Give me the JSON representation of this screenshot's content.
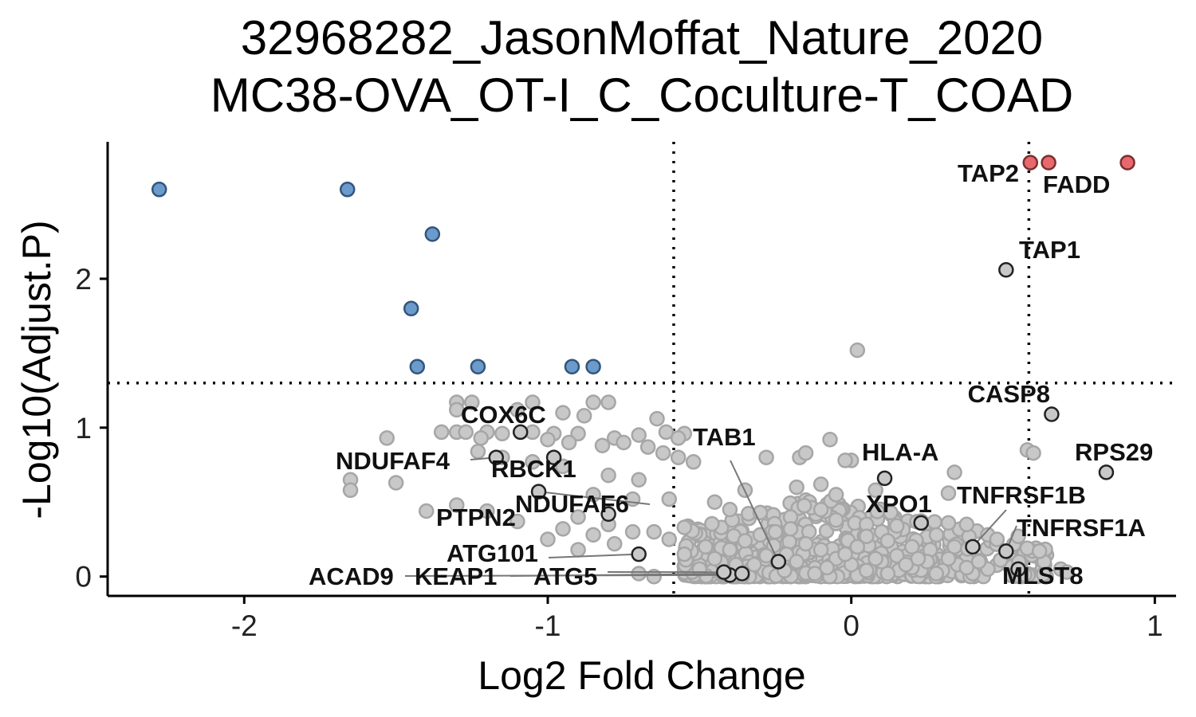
{
  "chart_data": {
    "type": "scatter",
    "title": [
      "32968282_JasonMoffat_Nature_2020",
      "MC38-OVA_OT-I_C_Coculture-T_COAD"
    ],
    "xlabel": "Log2 Fold Change",
    "ylabel": "-Log10(Adjust.P)",
    "xlim": [
      -2.45,
      1.07
    ],
    "ylim": [
      -0.13,
      2.92
    ],
    "x_ticks": [
      -2,
      -1,
      0,
      1
    ],
    "x_tick_labels": [
      "-2",
      "-1",
      "0",
      "1"
    ],
    "y_ticks": [
      0,
      1,
      2
    ],
    "y_tick_labels": [
      "0",
      "1",
      "2"
    ],
    "thresholds": {
      "x": [
        -0.585,
        0.585
      ],
      "y": 1.3
    },
    "grid": false,
    "legend": "none",
    "colors": {
      "up": "#e8686d",
      "down": "#6a9bcc",
      "ns": "#c8c8c8",
      "ns_stroke": "#a6a6a6",
      "labeled_stroke": "#222222"
    },
    "series": [
      {
        "category": "up",
        "points": [
          [
            0.59,
            2.78
          ],
          [
            0.65,
            2.78
          ],
          [
            0.91,
            2.78
          ]
        ]
      },
      {
        "category": "down",
        "points": [
          [
            -2.28,
            2.6
          ],
          [
            -1.66,
            2.6
          ],
          [
            -1.38,
            2.3
          ],
          [
            -1.45,
            1.8
          ],
          [
            -1.43,
            1.41
          ],
          [
            -1.23,
            1.41
          ],
          [
            -0.92,
            1.41
          ],
          [
            -0.85,
            1.41
          ]
        ]
      },
      {
        "category": "ns",
        "points": [
          [
            0.02,
            1.52
          ],
          [
            -1.3,
            1.17
          ],
          [
            -1.25,
            1.17
          ],
          [
            -1.05,
            1.17
          ],
          [
            -0.85,
            1.17
          ],
          [
            -0.8,
            1.17
          ],
          [
            -1.1,
            1.12
          ],
          [
            -0.95,
            1.1
          ],
          [
            -1.3,
            1.12
          ],
          [
            -0.88,
            1.08
          ],
          [
            -0.64,
            1.06
          ],
          [
            -1.35,
            0.97
          ],
          [
            -1.3,
            0.97
          ],
          [
            -1.27,
            0.97
          ],
          [
            -1.2,
            0.97
          ],
          [
            -1.15,
            0.96
          ],
          [
            -1.05,
            0.97
          ],
          [
            -0.98,
            0.96
          ],
          [
            -0.9,
            0.96
          ],
          [
            -0.78,
            0.93
          ],
          [
            -0.7,
            0.95
          ],
          [
            -0.61,
            0.97
          ],
          [
            -0.55,
            0.96
          ],
          [
            -0.57,
            0.93
          ],
          [
            -1.53,
            0.93
          ],
          [
            -1.22,
            0.93
          ],
          [
            -1.0,
            0.92
          ],
          [
            -0.93,
            0.9
          ],
          [
            -0.82,
            0.88
          ],
          [
            -0.75,
            0.9
          ],
          [
            -0.67,
            0.87
          ],
          [
            -0.62,
            0.83
          ],
          [
            -0.57,
            0.8
          ],
          [
            -0.52,
            0.77
          ],
          [
            -0.28,
            0.8
          ],
          [
            -0.17,
            0.8
          ],
          [
            -0.15,
            0.83
          ],
          [
            -0.07,
            0.92
          ],
          [
            0.0,
            0.78
          ],
          [
            -0.02,
            0.78
          ],
          [
            -1.23,
            0.84
          ],
          [
            -1.15,
            0.8
          ],
          [
            -1.05,
            0.77
          ],
          [
            -0.95,
            0.74
          ],
          [
            -0.8,
            0.68
          ],
          [
            -0.7,
            0.65
          ],
          [
            -1.65,
            0.65
          ],
          [
            -1.65,
            0.58
          ],
          [
            -1.5,
            0.63
          ],
          [
            -1.3,
            0.48
          ],
          [
            -1.4,
            0.44
          ],
          [
            -1.2,
            0.44
          ],
          [
            -1.1,
            0.37
          ],
          [
            -0.9,
            0.4
          ],
          [
            -0.8,
            0.35
          ],
          [
            -0.72,
            0.3
          ],
          [
            -0.65,
            0.3
          ],
          [
            -0.55,
            0.33
          ],
          [
            -0.45,
            0.5
          ],
          [
            -0.4,
            0.45
          ],
          [
            -0.3,
            0.43
          ],
          [
            -0.2,
            0.4
          ],
          [
            -0.1,
            0.45
          ],
          [
            -0.05,
            0.38
          ],
          [
            0.05,
            0.35
          ],
          [
            0.1,
            0.3
          ],
          [
            0.15,
            0.34
          ],
          [
            -0.18,
            0.6
          ],
          [
            -0.1,
            0.62
          ],
          [
            -0.05,
            0.55
          ],
          [
            0.08,
            0.58
          ],
          [
            0.34,
            0.7
          ],
          [
            0.32,
            0.56
          ],
          [
            0.32,
            0.36
          ],
          [
            0.38,
            0.35
          ],
          [
            0.45,
            0.28
          ],
          [
            0.48,
            0.25
          ],
          [
            0.55,
            0.27
          ],
          [
            0.58,
            0.85
          ],
          [
            0.6,
            0.83
          ],
          [
            0.58,
            0.19
          ],
          [
            0.62,
            0.17
          ],
          [
            0.69,
            0.05
          ],
          [
            0.71,
            0.03
          ],
          [
            0.34,
            0.2
          ],
          [
            0.26,
            0.18
          ],
          [
            0.2,
            0.2
          ],
          [
            0.12,
            0.24
          ],
          [
            0.05,
            0.27
          ],
          [
            -0.35,
            0.58
          ],
          [
            -0.6,
            0.52
          ],
          [
            -0.72,
            0.52
          ],
          [
            -0.85,
            0.55
          ],
          [
            -0.7,
            0.02
          ],
          [
            -0.65,
            0.0
          ],
          [
            -0.5,
            0.05
          ],
          [
            -0.45,
            0.12
          ],
          [
            -0.4,
            0.18
          ],
          [
            -0.35,
            0.24
          ],
          [
            -0.3,
            0.28
          ],
          [
            -0.25,
            0.3
          ],
          [
            -0.2,
            0.32
          ],
          [
            -0.15,
            0.22
          ],
          [
            -0.1,
            0.18
          ],
          [
            -0.05,
            0.12
          ],
          [
            0.0,
            0.08
          ],
          [
            0.05,
            0.04
          ],
          [
            0.1,
            0.1
          ],
          [
            0.15,
            0.14
          ],
          [
            0.2,
            0.06
          ],
          [
            0.25,
            0.1
          ],
          [
            0.3,
            0.04
          ],
          [
            0.35,
            0.08
          ],
          [
            0.4,
            0.02
          ],
          [
            0.45,
            0.05
          ],
          [
            -0.32,
            0.08
          ],
          [
            -0.28,
            0.14
          ],
          [
            -0.22,
            0.04
          ],
          [
            -0.18,
            0.1
          ],
          [
            -0.12,
            0.02
          ],
          [
            -0.08,
            0.06
          ],
          [
            -0.02,
            0.15
          ],
          [
            0.02,
            0.2
          ],
          [
            0.08,
            0.12
          ],
          [
            0.12,
            0.02
          ],
          [
            0.18,
            0.08
          ],
          [
            0.22,
            0.12
          ],
          [
            0.28,
            0.02
          ],
          [
            0.32,
            0.12
          ],
          [
            0.38,
            0.06
          ],
          [
            0.42,
            0.1
          ],
          [
            -0.42,
            0.02
          ],
          [
            -0.38,
            0.08
          ],
          [
            -0.48,
            0.2
          ],
          [
            -0.55,
            0.15
          ],
          [
            -0.6,
            0.25
          ],
          [
            -0.78,
            0.22
          ],
          [
            -0.9,
            0.18
          ],
          [
            -1.0,
            0.25
          ],
          [
            -0.85,
            0.28
          ],
          [
            -0.95,
            0.32
          ]
        ]
      }
    ],
    "labeled_points": [
      {
        "label": "TAP2",
        "x": 0.59,
        "y": 2.78,
        "category": "up"
      },
      {
        "label": "FADD",
        "x": 0.65,
        "y": 2.78,
        "category": "up"
      },
      {
        "label": "TAP1",
        "x": 0.51,
        "y": 2.06,
        "category": "ns"
      },
      {
        "label": "CASP8",
        "x": 0.66,
        "y": 1.09,
        "category": "ns"
      },
      {
        "label": "RPS29",
        "x": 0.84,
        "y": 0.7,
        "category": "ns"
      },
      {
        "label": "HLA-A",
        "x": 0.11,
        "y": 0.66,
        "category": "ns"
      },
      {
        "label": "XPO1",
        "x": 0.23,
        "y": 0.36,
        "category": "ns"
      },
      {
        "label": "TNFRSF1B",
        "x": 0.4,
        "y": 0.2,
        "category": "ns"
      },
      {
        "label": "TNFRSF1A",
        "x": 0.51,
        "y": 0.17,
        "category": "ns"
      },
      {
        "label": "MLST8",
        "x": 0.55,
        "y": 0.05,
        "category": "ns"
      },
      {
        "label": "COX6C",
        "x": -1.09,
        "y": 0.97,
        "category": "ns"
      },
      {
        "label": "NDUFAF4",
        "x": -1.17,
        "y": 0.8,
        "category": "ns"
      },
      {
        "label": "RBCK1",
        "x": -0.98,
        "y": 0.8,
        "category": "ns"
      },
      {
        "label": "NDUFAF6",
        "x": -1.03,
        "y": 0.57,
        "category": "ns"
      },
      {
        "label": "PTPN2",
        "x": -0.8,
        "y": 0.42,
        "category": "ns"
      },
      {
        "label": "ATG101",
        "x": -0.7,
        "y": 0.15,
        "category": "ns"
      },
      {
        "label": "ACAD9",
        "x": -0.4,
        "y": 0.01,
        "category": "ns"
      },
      {
        "label": "KEAP1",
        "x": -0.36,
        "y": 0.02,
        "category": "ns"
      },
      {
        "label": "ATG5",
        "x": -0.42,
        "y": 0.03,
        "category": "ns"
      },
      {
        "label": "TAB1",
        "x": -0.24,
        "y": 0.1,
        "category": "ns"
      }
    ]
  }
}
